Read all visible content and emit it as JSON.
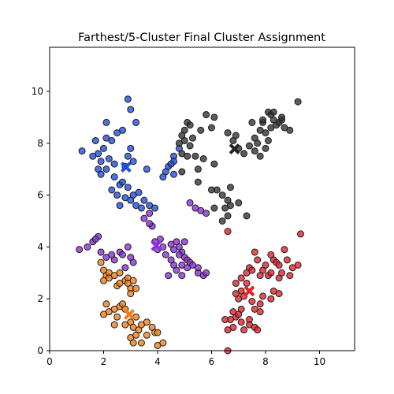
{
  "chart_data": {
    "type": "scatter",
    "title": "Farthest/5-Cluster Final Cluster Assignment",
    "xlabel": "",
    "ylabel": "",
    "xlim": [
      0,
      11.3
    ],
    "ylim": [
      0,
      11.7
    ],
    "xticks": [
      0,
      2,
      4,
      6,
      8,
      10
    ],
    "yticks": [
      0,
      2,
      4,
      6,
      8,
      10
    ],
    "grid": false,
    "series": [
      {
        "color": "#1f4fe0",
        "points": [
          [
            1.2,
            7.7
          ],
          [
            1.6,
            7.5
          ],
          [
            1.8,
            7.6
          ],
          [
            1.7,
            8.1
          ],
          [
            1.9,
            7.3
          ],
          [
            2.0,
            7.8
          ],
          [
            2.1,
            8.2
          ],
          [
            2.3,
            8.1
          ],
          [
            2.2,
            7.4
          ],
          [
            2.4,
            7.2
          ],
          [
            2.1,
            7.0
          ],
          [
            1.8,
            7.0
          ],
          [
            1.9,
            6.8
          ],
          [
            2.4,
            6.7
          ],
          [
            2.6,
            6.4
          ],
          [
            2.3,
            6.2
          ],
          [
            2.7,
            6.5
          ],
          [
            2.9,
            6.3
          ],
          [
            2.5,
            6.0
          ],
          [
            2.8,
            5.9
          ],
          [
            3.1,
            6.0
          ],
          [
            3.3,
            6.1
          ],
          [
            3.5,
            5.8
          ],
          [
            3.2,
            5.6
          ],
          [
            3.0,
            5.8
          ],
          [
            2.6,
            5.6
          ],
          [
            3.4,
            5.5
          ],
          [
            3.7,
            5.6
          ],
          [
            3.9,
            5.5
          ],
          [
            2.9,
            9.7
          ],
          [
            3.0,
            9.3
          ],
          [
            3.2,
            8.8
          ],
          [
            2.7,
            8.5
          ],
          [
            2.5,
            8.4
          ],
          [
            2.1,
            8.8
          ],
          [
            2.9,
            7.5
          ],
          [
            3.0,
            7.8
          ],
          [
            2.8,
            7.1
          ],
          [
            3.1,
            7.3
          ],
          [
            3.6,
            7.0
          ],
          [
            4.4,
            7.1
          ],
          [
            4.3,
            6.9
          ],
          [
            4.6,
            7.5
          ],
          [
            4.6,
            7.3
          ],
          [
            4.8,
            7.8
          ],
          [
            4.6,
            6.8
          ],
          [
            4.5,
            7.2
          ],
          [
            4.2,
            6.7
          ]
        ]
      },
      {
        "color": "#333333",
        "points": [
          [
            4.9,
            8.3
          ],
          [
            5.0,
            8.5
          ],
          [
            5.1,
            8.8
          ],
          [
            5.2,
            8.7
          ],
          [
            4.8,
            8.0
          ],
          [
            5.0,
            8.1
          ],
          [
            5.2,
            7.9
          ],
          [
            4.9,
            7.6
          ],
          [
            5.1,
            7.5
          ],
          [
            5.3,
            8.2
          ],
          [
            5.6,
            8.5
          ],
          [
            5.8,
            9.1
          ],
          [
            6.1,
            9.0
          ],
          [
            6.0,
            8.6
          ],
          [
            5.4,
            7.5
          ],
          [
            5.7,
            7.4
          ],
          [
            5.5,
            7.0
          ],
          [
            4.9,
            6.9
          ],
          [
            6.1,
            7.2
          ],
          [
            6.0,
            6.2
          ],
          [
            6.2,
            6.2
          ],
          [
            5.5,
            6.5
          ],
          [
            6.4,
            6.0
          ],
          [
            6.6,
            5.8
          ],
          [
            6.5,
            5.5
          ],
          [
            6.6,
            5.2
          ],
          [
            6.7,
            5.6
          ],
          [
            6.4,
            5.0
          ],
          [
            6.1,
            5.5
          ],
          [
            6.7,
            6.3
          ],
          [
            7.0,
            5.7
          ],
          [
            7.3,
            5.2
          ],
          [
            6.6,
            8.4
          ],
          [
            6.8,
            8.1
          ],
          [
            6.9,
            8.3
          ],
          [
            7.0,
            7.8
          ],
          [
            7.2,
            7.6
          ],
          [
            7.4,
            7.9
          ],
          [
            7.5,
            8.8
          ],
          [
            7.6,
            8.2
          ],
          [
            7.7,
            8.0
          ],
          [
            7.8,
            8.5
          ],
          [
            7.9,
            8.8
          ],
          [
            7.9,
            8.9
          ],
          [
            8.0,
            8.4
          ],
          [
            8.1,
            9.2
          ],
          [
            8.2,
            9.1
          ],
          [
            8.3,
            8.9
          ],
          [
            8.2,
            8.6
          ],
          [
            8.4,
            8.7
          ],
          [
            8.5,
            8.8
          ],
          [
            8.6,
            8.9
          ],
          [
            8.7,
            8.6
          ],
          [
            8.9,
            8.5
          ],
          [
            8.3,
            9.2
          ],
          [
            8.6,
            9.0
          ],
          [
            9.2,
            9.6
          ],
          [
            8.0,
            7.8
          ],
          [
            7.8,
            7.5
          ],
          [
            8.1,
            8.1
          ],
          [
            7.6,
            7.7
          ]
        ]
      },
      {
        "color": "#8c2fd6",
        "points": [
          [
            1.1,
            3.9
          ],
          [
            1.4,
            4.0
          ],
          [
            1.6,
            4.2
          ],
          [
            1.8,
            4.4
          ],
          [
            1.7,
            4.3
          ],
          [
            1.9,
            3.8
          ],
          [
            2.1,
            3.6
          ],
          [
            2.3,
            3.7
          ],
          [
            2.4,
            3.5
          ],
          [
            2.6,
            3.8
          ],
          [
            2.7,
            3.7
          ],
          [
            2.8,
            3.2
          ],
          [
            2.9,
            4.0
          ],
          [
            3.0,
            3.6
          ],
          [
            3.1,
            3.4
          ],
          [
            3.5,
            5.1
          ],
          [
            3.7,
            5.3
          ],
          [
            3.8,
            4.8
          ],
          [
            3.7,
            4.9
          ],
          [
            3.9,
            4.2
          ],
          [
            4.0,
            3.9
          ],
          [
            4.1,
            4.3
          ],
          [
            4.2,
            4.0
          ],
          [
            4.3,
            3.7
          ],
          [
            4.5,
            4.1
          ],
          [
            4.6,
            3.9
          ],
          [
            4.7,
            4.2
          ],
          [
            4.8,
            4.0
          ],
          [
            4.9,
            3.8
          ],
          [
            5.0,
            3.6
          ],
          [
            5.1,
            3.5
          ],
          [
            5.2,
            3.4
          ],
          [
            4.9,
            3.3
          ],
          [
            4.6,
            3.3
          ],
          [
            4.7,
            3.1
          ],
          [
            4.4,
            2.9
          ],
          [
            4.9,
            2.9
          ],
          [
            5.1,
            3.2
          ],
          [
            5.3,
            3.3
          ],
          [
            5.5,
            3.0
          ],
          [
            5.7,
            2.9
          ],
          [
            5.8,
            3.0
          ],
          [
            5.5,
            3.2
          ],
          [
            5.2,
            5.7
          ],
          [
            5.4,
            5.5
          ],
          [
            5.6,
            5.4
          ],
          [
            5.8,
            5.3
          ],
          [
            5.0,
            4.2
          ],
          [
            4.5,
            3.5
          ],
          [
            4.8,
            3.7
          ]
        ]
      },
      {
        "color": "#f07f1a",
        "points": [
          [
            1.9,
            3.4
          ],
          [
            2.0,
            3.1
          ],
          [
            2.1,
            2.9
          ],
          [
            2.2,
            3.0
          ],
          [
            2.0,
            2.7
          ],
          [
            2.2,
            2.8
          ],
          [
            2.5,
            2.5
          ],
          [
            2.6,
            2.6
          ],
          [
            2.8,
            2.7
          ],
          [
            2.9,
            2.8
          ],
          [
            3.0,
            2.4
          ],
          [
            3.2,
            2.4
          ],
          [
            3.0,
            2.2
          ],
          [
            2.9,
            2.6
          ],
          [
            3.1,
            2.7
          ],
          [
            2.1,
            1.8
          ],
          [
            2.2,
            1.5
          ],
          [
            2.0,
            1.4
          ],
          [
            2.4,
            1.6
          ],
          [
            2.6,
            1.7
          ],
          [
            2.7,
            1.8
          ],
          [
            2.8,
            1.6
          ],
          [
            2.5,
            1.3
          ],
          [
            2.4,
            1.0
          ],
          [
            2.8,
            1.0
          ],
          [
            3.0,
            1.1
          ],
          [
            3.1,
            0.9
          ],
          [
            3.2,
            0.6
          ],
          [
            3.3,
            0.8
          ],
          [
            3.0,
            0.5
          ],
          [
            3.1,
            0.3
          ],
          [
            3.4,
            0.3
          ],
          [
            3.6,
            0.6
          ],
          [
            3.4,
            1.0
          ],
          [
            3.6,
            1.1
          ],
          [
            3.8,
            0.9
          ],
          [
            3.9,
            0.7
          ],
          [
            4.0,
            0.2
          ],
          [
            4.2,
            0.3
          ],
          [
            4.0,
            0.7
          ],
          [
            2.4,
            2.9
          ],
          [
            2.6,
            3.0
          ],
          [
            3.2,
            1.3
          ]
        ]
      },
      {
        "color": "#e0232b",
        "points": [
          [
            6.6,
            4.6
          ],
          [
            6.9,
            2.6
          ],
          [
            6.9,
            2.2
          ],
          [
            7.0,
            2.0
          ],
          [
            7.1,
            2.3
          ],
          [
            7.1,
            2.8
          ],
          [
            7.2,
            2.1
          ],
          [
            7.3,
            2.6
          ],
          [
            7.3,
            3.0
          ],
          [
            7.4,
            3.2
          ],
          [
            7.5,
            3.1
          ],
          [
            7.6,
            3.8
          ],
          [
            7.7,
            3.5
          ],
          [
            7.8,
            2.9
          ],
          [
            7.9,
            3.1
          ],
          [
            8.0,
            3.3
          ],
          [
            8.1,
            2.9
          ],
          [
            8.2,
            3.0
          ],
          [
            8.3,
            3.5
          ],
          [
            8.2,
            3.7
          ],
          [
            8.4,
            3.4
          ],
          [
            8.5,
            3.3
          ],
          [
            8.5,
            2.8
          ],
          [
            8.6,
            3.0
          ],
          [
            8.7,
            3.9
          ],
          [
            8.8,
            3.5
          ],
          [
            8.9,
            2.9
          ],
          [
            9.0,
            3.2
          ],
          [
            9.2,
            3.3
          ],
          [
            9.3,
            4.5
          ],
          [
            8.3,
            2.3
          ],
          [
            8.5,
            2.2
          ],
          [
            8.2,
            2.0
          ],
          [
            7.9,
            2.1
          ],
          [
            7.8,
            1.8
          ],
          [
            7.6,
            1.6
          ],
          [
            7.8,
            1.5
          ],
          [
            7.5,
            1.9
          ],
          [
            7.4,
            1.2
          ],
          [
            7.4,
            1.0
          ],
          [
            7.6,
            0.9
          ],
          [
            7.7,
            0.8
          ],
          [
            7.2,
            0.8
          ],
          [
            7.1,
            1.1
          ],
          [
            6.8,
            0.9
          ],
          [
            6.9,
            1.3
          ],
          [
            6.7,
            1.2
          ],
          [
            6.6,
            0.8
          ],
          [
            6.5,
            1.2
          ],
          [
            6.8,
            1.5
          ],
          [
            7.0,
            1.4
          ],
          [
            7.1,
            1.6
          ],
          [
            6.6,
            0.0
          ]
        ]
      }
    ],
    "centroids": [
      {
        "x": 2.83,
        "y": 7.08,
        "color": "#1f4fe0"
      },
      {
        "x": 6.85,
        "y": 7.78,
        "color": "#222222"
      },
      {
        "x": 3.95,
        "y": 4.05,
        "color": "#8c2fd6"
      },
      {
        "x": 2.95,
        "y": 1.4,
        "color": "#f07f1a"
      },
      {
        "x": 7.4,
        "y": 2.3,
        "color": "#e0232b"
      }
    ]
  }
}
